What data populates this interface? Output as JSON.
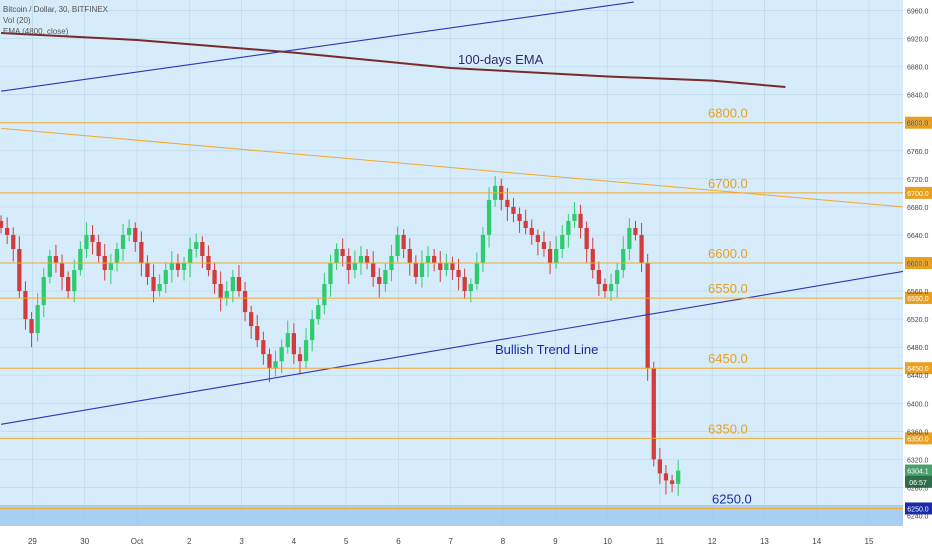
{
  "header": {
    "title": "Bitcoin / Dollar, 30, BITFINEX",
    "volume": "Vol (20)",
    "ema": "EMA (4800, close)"
  },
  "colors": {
    "background": "#d7ecfa",
    "grid": "#b9d6ea",
    "level": "#f0a830",
    "level_text": "#e8a020",
    "trend": "#2d34b8",
    "ema": "#7a2a2a",
    "up": "#2ecc71",
    "down": "#d23c3c",
    "volume_band": "#9cc7ef"
  },
  "chart_data": {
    "type": "candlestick",
    "instrument": "Bitcoin / Dollar",
    "exchange": "BITFINEX",
    "interval": "30",
    "ylim": [
      6225,
      6975
    ],
    "y_ticks": [
      6960.0,
      6920.0,
      6880.0,
      6840.0,
      6800.0,
      6760.0,
      6720.0,
      6680.0,
      6640.0,
      6600.0,
      6560.0,
      6520.0,
      6480.0,
      6440.0,
      6400.0,
      6360.0,
      6320.0,
      6280.0,
      6240.0
    ],
    "x_ticks": [
      "29",
      "30",
      "Oct",
      "2",
      "3",
      "4",
      "5",
      "6",
      "7",
      "8",
      "9",
      "10",
      "11",
      "12",
      "13",
      "14",
      "15"
    ],
    "x_tick_positions": [
      29,
      30,
      31,
      32,
      33,
      34,
      35,
      36,
      37,
      38,
      39,
      40,
      41,
      42,
      43,
      44,
      45
    ],
    "xlim": [
      28.38,
      45.65
    ],
    "horizontal_levels": [
      {
        "value": 6800.0,
        "label": "6800.0",
        "tag": "6800.0"
      },
      {
        "value": 6700.0,
        "label": "6700.0",
        "tag": "6700.0"
      },
      {
        "value": 6600.0,
        "label": "6600.0",
        "tag": "6600.0"
      },
      {
        "value": 6550.0,
        "label": "6550.0",
        "tag": "6550.0"
      },
      {
        "value": 6450.0,
        "label": "6450.0",
        "tag": "6450.0"
      },
      {
        "value": 6350.0,
        "label": "6350.0",
        "tag": "6350.0"
      },
      {
        "value": 6250.0,
        "label": "6250.0",
        "tag": "6250.0"
      }
    ],
    "price_tags": [
      {
        "value": 6304.1,
        "label": "6304.1"
      },
      {
        "value": 6288.0,
        "label": "06:57"
      }
    ],
    "annotations": [
      "100-days EMA",
      "Bullish Trend Line"
    ],
    "ema_100": [
      [
        28.4,
        6928
      ],
      [
        31,
        6918
      ],
      [
        34,
        6900
      ],
      [
        37,
        6878
      ],
      [
        40,
        6866
      ],
      [
        42,
        6860
      ],
      [
        43.4,
        6851
      ]
    ],
    "trend_line_upper": [
      [
        28.4,
        6845
      ],
      [
        40.5,
        6972
      ]
    ],
    "trend_line_lower": [
      [
        28.4,
        6370
      ],
      [
        45.65,
        6588
      ]
    ],
    "channel_line": [
      [
        28.4,
        6792
      ],
      [
        45.65,
        6680
      ]
    ],
    "candles_close": [
      6650,
      6640,
      6620,
      6560,
      6520,
      6500,
      6540,
      6580,
      6610,
      6600,
      6580,
      6560,
      6590,
      6620,
      6640,
      6630,
      6610,
      6590,
      6600,
      6620,
      6640,
      6650,
      6630,
      6600,
      6580,
      6560,
      6570,
      6590,
      6600,
      6590,
      6600,
      6620,
      6630,
      6610,
      6590,
      6570,
      6550,
      6560,
      6580,
      6560,
      6530,
      6510,
      6490,
      6470,
      6450,
      6460,
      6480,
      6500,
      6470,
      6460,
      6490,
      6520,
      6540,
      6570,
      6600,
      6620,
      6610,
      6590,
      6600,
      6610,
      6600,
      6580,
      6570,
      6590,
      6610,
      6640,
      6620,
      6600,
      6580,
      6600,
      6610,
      6600,
      6590,
      6600,
      6590,
      6580,
      6560,
      6570,
      6600,
      6640,
      6690,
      6710,
      6690,
      6680,
      6670,
      6660,
      6650,
      6640,
      6630,
      6620,
      6600,
      6620,
      6640,
      6660,
      6670,
      6650,
      6620,
      6590,
      6570,
      6560,
      6570,
      6590,
      6620,
      6650,
      6640,
      6600,
      6450,
      6320,
      6300,
      6290,
      6285,
      6304
    ]
  }
}
